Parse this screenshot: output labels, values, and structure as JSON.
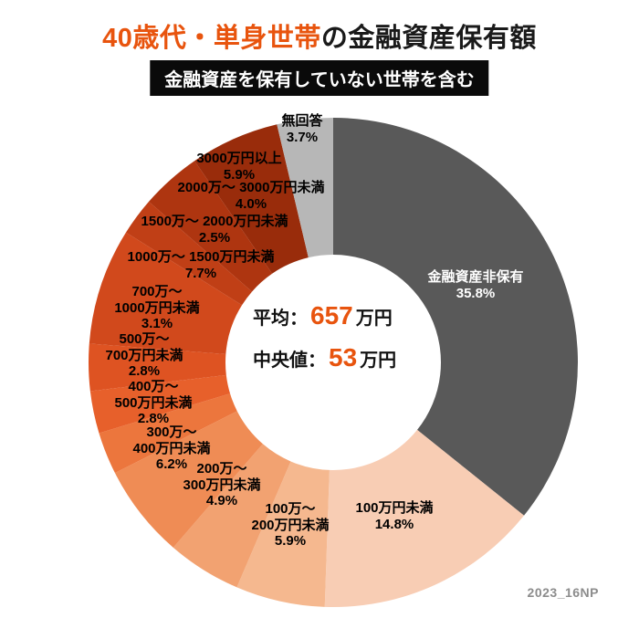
{
  "page": {
    "title_highlight": "40歳代・単身世帯",
    "title_rest": "の金融資産保有額",
    "badge": "金融資産を保有していない世帯を含む",
    "watermark": "2023_16NP"
  },
  "center_stats": {
    "mean_label": "平均：",
    "mean_value": "657",
    "mean_unit": "万円",
    "median_label": "中央値：",
    "median_value": "53",
    "median_unit": "万円"
  },
  "colors": {
    "accent": "#E8540E",
    "title_text": "#1A1A1A",
    "badge_bg": "#0A0A0A",
    "badge_text": "#FFFFFF",
    "watermark": "#8C8C8C"
  },
  "chart_data": {
    "type": "pie",
    "donut": true,
    "start_angle_deg": -90,
    "direction": "clockwise",
    "title": "40歳代・単身世帯の金融資産保有額",
    "subtitle": "金融資産を保有していない世帯を含む",
    "center_text": [
      "平均：657万円",
      "中央値：53万円"
    ],
    "legend_position": "on-chart",
    "segments": [
      {
        "label": "金融資産非保有",
        "value": 35.8,
        "color": "#595959",
        "label_lines": [
          "金融資産非保有",
          "35.8%"
        ],
        "label_color": "#FFFFFF"
      },
      {
        "label": "100万円未満",
        "value": 14.8,
        "color": "#F8CDB4",
        "label_lines": [
          "100万円未満",
          "14.8%"
        ],
        "label_color": "#000000"
      },
      {
        "label": "100万〜200万円未満",
        "value": 5.9,
        "color": "#F5B88F",
        "label_lines": [
          "100万〜",
          "200万円未満",
          "5.9%"
        ],
        "label_color": "#000000"
      },
      {
        "label": "200万〜300万円未満",
        "value": 4.9,
        "color": "#F2A271",
        "label_lines": [
          "200万〜",
          "300万円未満",
          "4.9%"
        ],
        "label_color": "#000000"
      },
      {
        "label": "300万〜400万円未満",
        "value": 6.2,
        "color": "#EF8C55",
        "label_lines": [
          "300万〜",
          "400万円未満",
          "6.2%"
        ],
        "label_color": "#000000"
      },
      {
        "label": "400万〜500万円未満",
        "value": 2.8,
        "color": "#EC763D",
        "label_lines": [
          "400万〜",
          "500万円未満",
          "2.8%"
        ],
        "label_color": "#000000"
      },
      {
        "label": "500万〜700万円未満",
        "value": 2.8,
        "color": "#E7602B",
        "label_lines": [
          "500万〜",
          "700万円未満",
          "2.8%"
        ],
        "label_color": "#000000"
      },
      {
        "label": "700万〜1000万円未満",
        "value": 3.1,
        "color": "#DE5322",
        "label_lines": [
          "700万〜",
          "1000万円未満",
          "3.1%"
        ],
        "label_color": "#000000"
      },
      {
        "label": "1000万〜1500万円未満",
        "value": 7.7,
        "color": "#D1491C",
        "label_lines": [
          "1000万〜 1500万円未満",
          "7.7%"
        ],
        "label_color": "#000000"
      },
      {
        "label": "1500万〜2000万円未満",
        "value": 2.5,
        "color": "#C03F16",
        "label_lines": [
          "1500万〜 2000万円未満",
          "2.5%"
        ],
        "label_color": "#000000"
      },
      {
        "label": "2000万〜3000万円未満",
        "value": 4.0,
        "color": "#AE3510",
        "label_lines": [
          "2000万〜 3000万円未満",
          "4.0%"
        ],
        "label_color": "#000000"
      },
      {
        "label": "3000万円以上",
        "value": 5.9,
        "color": "#992C0B",
        "label_lines": [
          "3000万円以上",
          "5.9%"
        ],
        "label_color": "#000000"
      },
      {
        "label": "無回答",
        "value": 3.7,
        "color": "#B7B7B7",
        "label_lines": [
          "無回答",
          "3.7%"
        ],
        "label_color": "#000000"
      }
    ]
  }
}
